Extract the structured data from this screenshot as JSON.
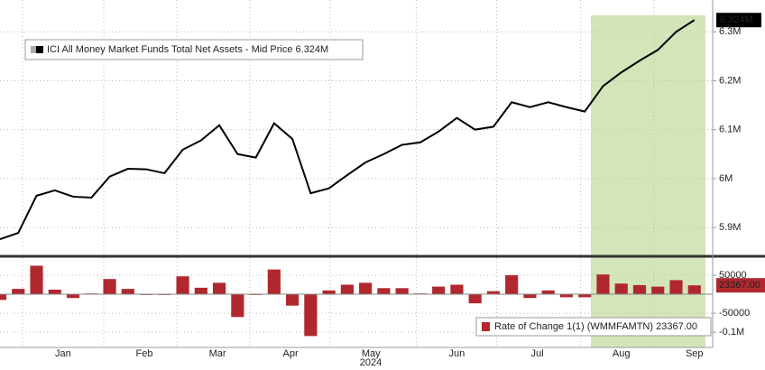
{
  "chart_data": [
    {
      "type": "line",
      "series": [
        {
          "name": "ICI All Money Market Funds Total Net Assets - Mid Price",
          "last_label": "6.324M",
          "color": "#000000",
          "values": [
            5.876,
            5.889,
            5.965,
            5.976,
            5.963,
            5.961,
            6.004,
            6.02,
            6.019,
            6.011,
            6.059,
            6.078,
            6.109,
            6.05,
            6.043,
            6.113,
            6.081,
            5.97,
            5.98,
            6.007,
            6.033,
            6.05,
            6.069,
            6.074,
            6.096,
            6.124,
            6.1,
            6.106,
            6.156,
            6.146,
            6.156,
            6.146,
            6.137,
            6.189,
            6.217,
            6.241,
            6.263,
            6.3,
            6.324
          ]
        }
      ],
      "xlim": [
        0,
        39
      ],
      "ylim": [
        5.843,
        6.365
      ],
      "yticks": [
        {
          "value": 5.9,
          "label": "5.9M"
        },
        {
          "value": 6.0,
          "label": "6M"
        },
        {
          "value": 6.1,
          "label": "6.1M"
        },
        {
          "value": 6.2,
          "label": "6.2M"
        },
        {
          "value": 6.3,
          "label": "6.3M"
        }
      ],
      "grid": true
    },
    {
      "type": "bar",
      "series": [
        {
          "name": "Rate of Change 1(1) (WMMFAMTN)",
          "last_label": "23367.00",
          "color": "#b0282e",
          "values": [
            -15000,
            14000,
            75000,
            12000,
            -10000,
            2000,
            40000,
            14000,
            -2000,
            -2000,
            47000,
            17000,
            30000,
            -60000,
            -2000,
            65000,
            -30000,
            -110000,
            10000,
            25000,
            30000,
            16000,
            16000,
            2000,
            20000,
            25000,
            -24000,
            8000,
            50000,
            -10000,
            10000,
            -8000,
            -8000,
            52000,
            28000,
            24000,
            20000,
            37000,
            23367
          ]
        }
      ],
      "xlim": [
        0,
        39
      ],
      "ylim": [
        -140000,
        95000
      ],
      "yticks": [
        50000,
        -50000,
        {
          "value": -100000,
          "label": "-0.1M"
        }
      ],
      "xticks": [
        {
          "value": 3.45,
          "label": "Jan"
        },
        {
          "value": 7.9,
          "label": "Feb"
        },
        {
          "value": 11.9,
          "label": "Mar"
        },
        {
          "value": 15.9,
          "label": "Apr"
        },
        {
          "value": 20.3,
          "label": "May"
        },
        {
          "value": 25.0,
          "label": "Jun"
        },
        {
          "value": 29.4,
          "label": "Jul"
        },
        {
          "value": 34.0,
          "label": "Aug"
        },
        {
          "value": 38.0,
          "label": "Sep"
        }
      ],
      "xlabel": "2024",
      "grid": true
    }
  ]
}
